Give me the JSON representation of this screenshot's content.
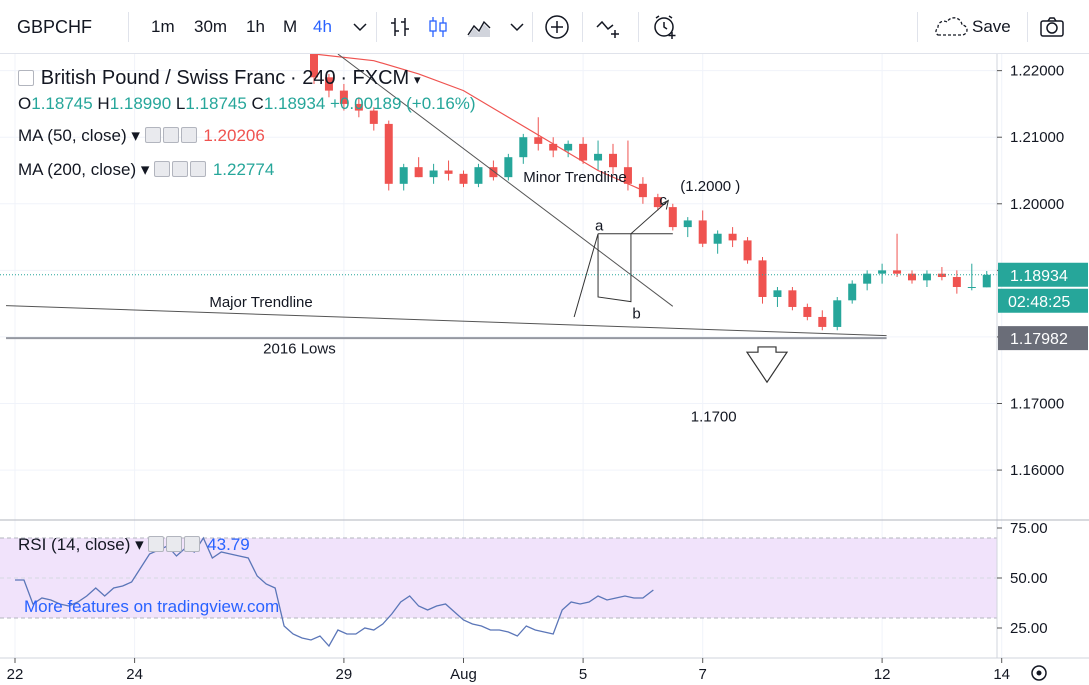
{
  "toolbar": {
    "symbol": "GBPCHF",
    "timeframes": [
      "1m",
      "30m",
      "1h",
      "M",
      "4h"
    ],
    "active_timeframe": "4h",
    "save_label": "Save"
  },
  "legend": {
    "title": "British Pound / Swiss Franc",
    "interval": "240",
    "source": "FXCM",
    "o_label": "O",
    "o_value": "1.18745",
    "h_label": "H",
    "h_value": "1.18990",
    "l_label": "L",
    "l_value": "1.18745",
    "c_label": "C",
    "c_value": "1.18934",
    "change": "+0.00189 (+0.16%)",
    "ma50_label": "MA (50, close)",
    "ma50_value": "1.20206",
    "ma200_label": "MA (200, close)",
    "ma200_value": "1.22774",
    "rsi_label": "RSI (14, close)",
    "rsi_value": "43.79"
  },
  "watermark": "More features on tradingview.com",
  "colors": {
    "up": "#26a69a",
    "down": "#ef5350",
    "ma50": "#ef5350",
    "rsi_line": "#5b76b8",
    "rsi_band": "#f1e3fb",
    "accent": "#2962ff"
  },
  "icons": [
    "bar-style-icon",
    "candle-style-icon",
    "area-style-icon",
    "indicators-icon",
    "compare-icon",
    "alert-icon",
    "cloud-save-icon",
    "camera-icon",
    "settings-icon"
  ],
  "chart_data": [
    {
      "type": "candlestick",
      "title": "British Pound / Swiss Franc · 240 · FXCM",
      "ylim": [
        1.1525,
        1.2225
      ],
      "y_ticks": [
        "1.22000",
        "1.21000",
        "1.20000",
        "1.19000",
        "1.18000",
        "1.17000",
        "1.16000"
      ],
      "x_ticks": [
        "22",
        "24",
        "29",
        "Aug",
        "5",
        "7",
        "12",
        "14"
      ],
      "x_tick_index": [
        0,
        8,
        22,
        30,
        38,
        46,
        58,
        66
      ],
      "candles": [
        [
          1.2225,
          1.2225,
          1.218,
          1.219
        ],
        [
          1.219,
          1.2195,
          1.216,
          1.217
        ],
        [
          1.217,
          1.218,
          1.214,
          1.215
        ],
        [
          1.215,
          1.216,
          1.213,
          1.214
        ],
        [
          1.214,
          1.2145,
          1.211,
          1.212
        ],
        [
          1.212,
          1.2125,
          1.202,
          1.203
        ],
        [
          1.203,
          1.206,
          1.202,
          1.2055
        ],
        [
          1.2055,
          1.207,
          1.204,
          1.204
        ],
        [
          1.204,
          1.206,
          1.203,
          1.205
        ],
        [
          1.205,
          1.2065,
          1.2035,
          1.2045
        ],
        [
          1.2045,
          1.205,
          1.2025,
          1.203
        ],
        [
          1.203,
          1.206,
          1.2025,
          1.2055
        ],
        [
          1.2055,
          1.2065,
          1.2035,
          1.204
        ],
        [
          1.204,
          1.2075,
          1.2035,
          1.207
        ],
        [
          1.207,
          1.2105,
          1.206,
          1.21
        ],
        [
          1.21,
          1.213,
          1.208,
          1.209
        ],
        [
          1.209,
          1.21,
          1.207,
          1.208
        ],
        [
          1.208,
          1.2095,
          1.207,
          1.209
        ],
        [
          1.209,
          1.21,
          1.206,
          1.2065
        ],
        [
          1.2065,
          1.2095,
          1.205,
          1.2075
        ],
        [
          1.2075,
          1.209,
          1.2045,
          1.2055
        ],
        [
          1.2055,
          1.2095,
          1.202,
          1.203
        ],
        [
          1.203,
          1.204,
          1.2,
          1.201
        ],
        [
          1.201,
          1.2015,
          1.199,
          1.1995
        ],
        [
          1.1995,
          1.2,
          1.196,
          1.1965
        ],
        [
          1.1965,
          1.198,
          1.195,
          1.1975
        ],
        [
          1.1975,
          1.199,
          1.1935,
          1.194
        ],
        [
          1.194,
          1.196,
          1.1925,
          1.1955
        ],
        [
          1.1955,
          1.1965,
          1.1935,
          1.1945
        ],
        [
          1.1945,
          1.195,
          1.191,
          1.1915
        ],
        [
          1.1915,
          1.192,
          1.185,
          1.186
        ],
        [
          1.186,
          1.1875,
          1.1845,
          1.187
        ],
        [
          1.187,
          1.1875,
          1.184,
          1.1845
        ],
        [
          1.1845,
          1.185,
          1.1825,
          1.183
        ],
        [
          1.183,
          1.184,
          1.181,
          1.1815
        ],
        [
          1.1815,
          1.186,
          1.181,
          1.1855
        ],
        [
          1.1855,
          1.1885,
          1.185,
          1.188
        ],
        [
          1.188,
          1.19,
          1.187,
          1.1895
        ],
        [
          1.1895,
          1.191,
          1.188,
          1.19
        ],
        [
          1.19,
          1.1955,
          1.189,
          1.1895
        ],
        [
          1.1895,
          1.19,
          1.188,
          1.1885
        ],
        [
          1.1885,
          1.19,
          1.1875,
          1.1895
        ],
        [
          1.1895,
          1.1905,
          1.1885,
          1.189
        ],
        [
          1.189,
          1.19,
          1.1865,
          1.1875
        ],
        [
          1.1875,
          1.191,
          1.187,
          1.1875
        ],
        [
          1.18745,
          1.1899,
          1.18745,
          1.18934
        ]
      ],
      "series": [
        {
          "name": "MA (50, close)",
          "points": [
            [
              20,
              1.2225
            ],
            [
              24,
              1.2215
            ],
            [
              27,
              1.2195
            ],
            [
              30,
              1.217
            ],
            [
              33,
              1.213
            ],
            [
              36,
              1.209
            ],
            [
              39,
              1.205
            ],
            [
              42,
              1.202
            ]
          ]
        }
      ],
      "annotations": [
        {
          "text": "Minor Trendline",
          "x": 34,
          "y": 1.2033
        },
        {
          "text": "Major Trendline",
          "x": 13,
          "y": 1.1845
        },
        {
          "text": "2016 Lows",
          "x": 16.6,
          "y": 1.1775
        },
        {
          "text": "a",
          "x": 38.8,
          "y": 1.196
        },
        {
          "text": "b",
          "x": 41.3,
          "y": 1.1828
        },
        {
          "text": "c",
          "x": 43.1,
          "y": 1.1998
        },
        {
          "text": "(1.2000 )",
          "x": 44.5,
          "y": 1.2019
        },
        {
          "text": "1.1700",
          "x": 45.2,
          "y": 1.1673
        }
      ],
      "trendlines": [
        {
          "name": "Minor Trendline",
          "from": [
            21.6,
            1.2225
          ],
          "to": [
            44,
            1.1846
          ]
        },
        {
          "name": "Major Trendline",
          "from": [
            -0.6,
            1.1847
          ],
          "to": [
            58.3,
            1.1802
          ]
        },
        {
          "name": "2016 Lows",
          "from": [
            -0.6,
            1.17982
          ],
          "to": [
            58.3,
            1.17982
          ]
        }
      ],
      "wave": [
        [
          37.4,
          1.183
        ],
        [
          39.0,
          1.1955
        ],
        [
          39.0,
          1.186
        ],
        [
          41.2,
          1.1853
        ],
        [
          41.2,
          1.1955
        ],
        [
          43.7,
          1.2005
        ]
      ],
      "target_level": {
        "from": [
          39,
          1.1955
        ],
        "to": [
          44,
          1.1955
        ]
      },
      "last_price": "1.18934",
      "countdown": "02:48:25",
      "level_label": "1.17982"
    },
    {
      "type": "line",
      "title": "RSI (14, close)",
      "ylim": [
        10,
        79
      ],
      "y_ticks": [
        "75.00",
        "50.00",
        "25.00"
      ],
      "band": [
        30,
        70
      ],
      "series": [
        {
          "name": "RSI (14, close)",
          "values": [
            49,
            49,
            37,
            40,
            39,
            37,
            36,
            38,
            41,
            45,
            41,
            45,
            46,
            48,
            55,
            62,
            64,
            66,
            61,
            65,
            63,
            70,
            60,
            63,
            62,
            61,
            60,
            51,
            47,
            45,
            26,
            22,
            20,
            19,
            21,
            16,
            24,
            22,
            22,
            25,
            24,
            27,
            32,
            38,
            41,
            36,
            34,
            36,
            37,
            33,
            29,
            27,
            26,
            24,
            24,
            23,
            21,
            26,
            24,
            23,
            22,
            34,
            38,
            37,
            38,
            41,
            39,
            40,
            41,
            40,
            40,
            44
          ]
        },
        {
          "name": "x_index_map",
          "values": [
            0,
            0.6,
            1.2,
            1.8,
            2.4,
            3,
            3.6,
            4.2,
            4.8,
            5.4,
            6,
            6.6,
            7.2,
            7.8,
            8.4,
            9,
            9.6,
            10.2,
            10.8,
            11.4,
            12,
            12.6,
            13.2,
            13.8,
            14.4,
            15,
            15.6,
            16.2,
            16.8,
            17.4,
            18,
            18.6,
            19.2,
            19.8,
            20.4,
            21,
            21.6,
            22.2,
            22.8,
            23.4,
            24,
            24.6,
            25.2,
            25.8,
            26.4,
            27,
            27.6,
            28.2,
            28.8,
            29.4,
            30,
            30.6,
            31.2,
            31.8,
            32.4,
            33,
            33.6,
            34.2,
            34.8,
            35.4,
            36,
            36.6,
            37.2,
            37.8,
            38.4,
            39,
            39.6,
            40.2,
            40.8,
            41.4,
            42,
            42.7
          ]
        }
      ]
    }
  ]
}
